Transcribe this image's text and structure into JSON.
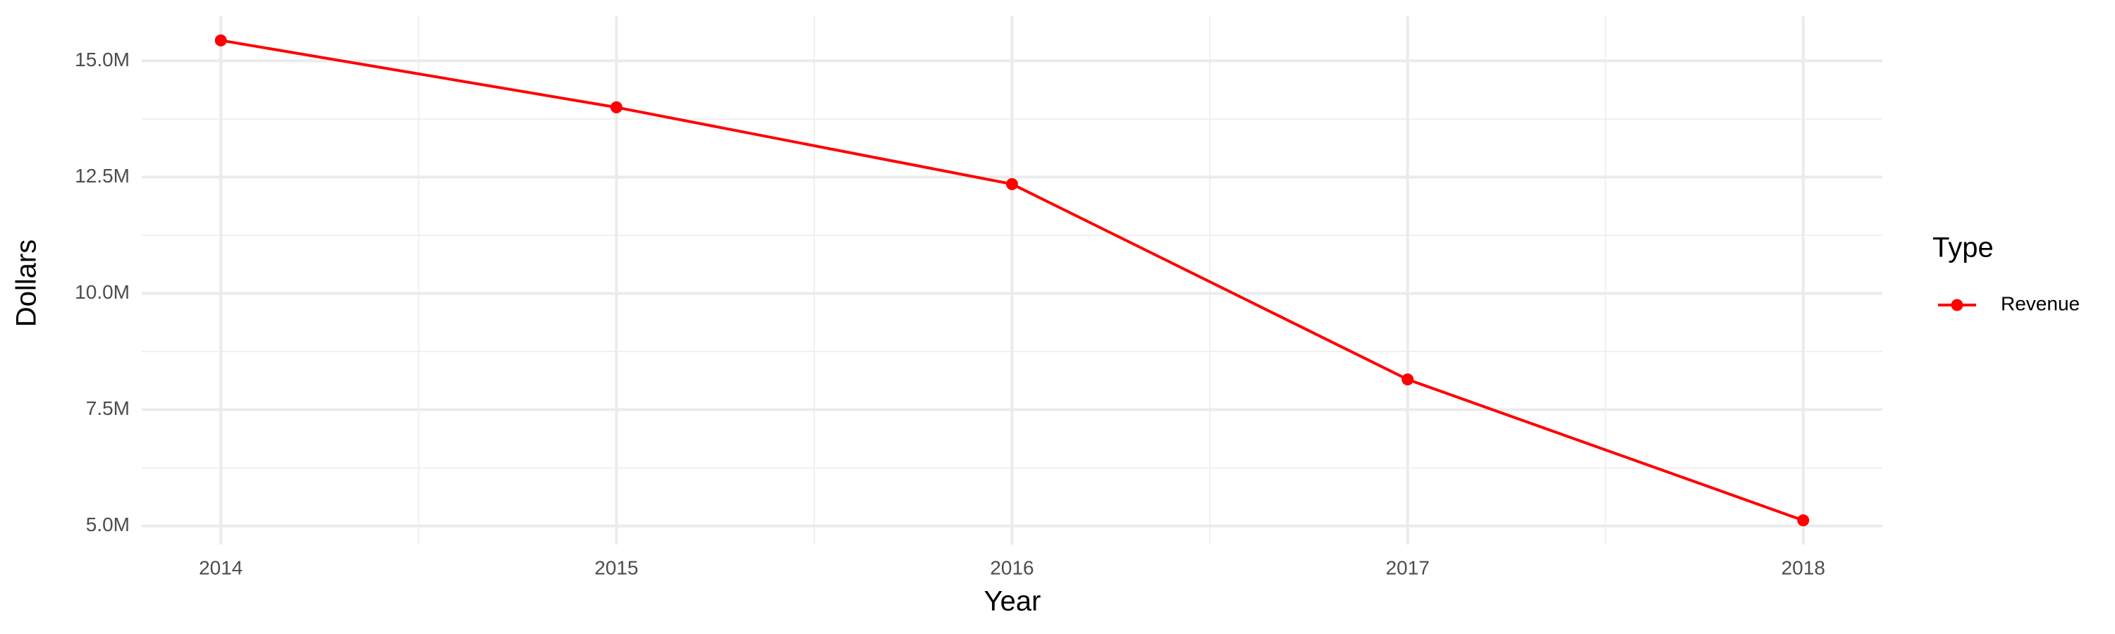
{
  "chart_data": {
    "type": "line",
    "x_label": "Year",
    "y_label": "Dollars",
    "x": [
      2014,
      2015,
      2016,
      2017,
      2018
    ],
    "series": [
      {
        "name": "Revenue",
        "color": "#ff0000",
        "values": [
          15440000,
          14000000,
          12350000,
          8150000,
          5120000
        ]
      }
    ],
    "xlim": [
      2013.8,
      2018.2
    ],
    "xticks": [
      2014,
      2015,
      2016,
      2017,
      2018
    ],
    "x_minor_ticks": [
      2014.5,
      2015.5,
      2016.5,
      2017.5
    ],
    "ylim": [
      4600000,
      15960000
    ],
    "yticks": [
      {
        "value": 5000000,
        "label": "5.0M"
      },
      {
        "value": 7500000,
        "label": "7.5M"
      },
      {
        "value": 10000000,
        "label": "10.0M"
      },
      {
        "value": 12500000,
        "label": "12.5M"
      },
      {
        "value": 15000000,
        "label": "15.0M"
      }
    ],
    "y_minor_ticks": [
      6250000,
      8750000,
      11250000,
      13750000
    ],
    "grid": true,
    "legend_title": "Type",
    "legend_position": "right"
  }
}
